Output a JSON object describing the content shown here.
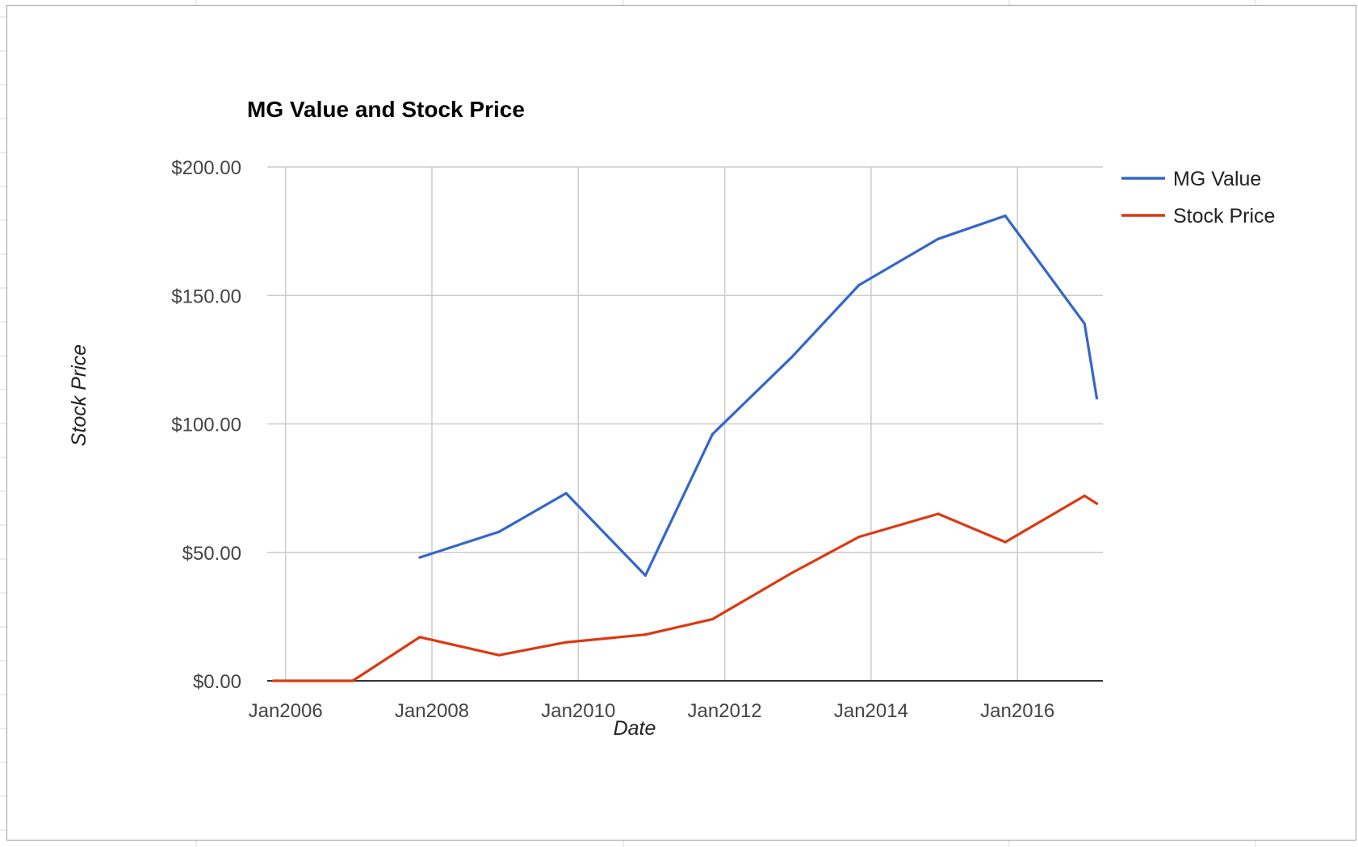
{
  "chart_data": {
    "type": "line",
    "title": "MG Value and Stock Price",
    "xlabel": "Date",
    "ylabel": "Stock Price",
    "x_tick_labels": [
      "Jan2006",
      "Jan2008",
      "Jan2010",
      "Jan2012",
      "Jan2014",
      "Jan2016"
    ],
    "y_tick_labels": [
      "$0.00",
      "$50.00",
      "$100.00",
      "$150.00",
      "$200.00"
    ],
    "ylim": [
      0,
      200
    ],
    "xlim": [
      "2005-10",
      "2017-03"
    ],
    "grid": true,
    "legend_position": "right",
    "series": [
      {
        "name": "MG Value",
        "color": "#3366cc",
        "points": [
          {
            "x": "2007-11",
            "y": 48
          },
          {
            "x": "2008-12",
            "y": 58
          },
          {
            "x": "2009-11",
            "y": 73
          },
          {
            "x": "2010-12",
            "y": 41
          },
          {
            "x": "2011-11",
            "y": 96
          },
          {
            "x": "2012-12",
            "y": 126
          },
          {
            "x": "2013-11",
            "y": 154
          },
          {
            "x": "2014-12",
            "y": 172
          },
          {
            "x": "2015-11",
            "y": 181
          },
          {
            "x": "2016-12",
            "y": 139
          },
          {
            "x": "2017-02",
            "y": 110
          }
        ]
      },
      {
        "name": "Stock Price",
        "color": "#dc3912",
        "points": [
          {
            "x": "2005-11",
            "y": 0
          },
          {
            "x": "2006-12",
            "y": 0
          },
          {
            "x": "2007-11",
            "y": 17
          },
          {
            "x": "2008-12",
            "y": 10
          },
          {
            "x": "2009-11",
            "y": 15
          },
          {
            "x": "2010-12",
            "y": 18
          },
          {
            "x": "2011-11",
            "y": 24
          },
          {
            "x": "2012-12",
            "y": 42
          },
          {
            "x": "2013-11",
            "y": 56
          },
          {
            "x": "2014-12",
            "y": 65
          },
          {
            "x": "2015-11",
            "y": 54
          },
          {
            "x": "2016-12",
            "y": 72
          },
          {
            "x": "2017-02",
            "y": 69
          }
        ]
      }
    ]
  }
}
